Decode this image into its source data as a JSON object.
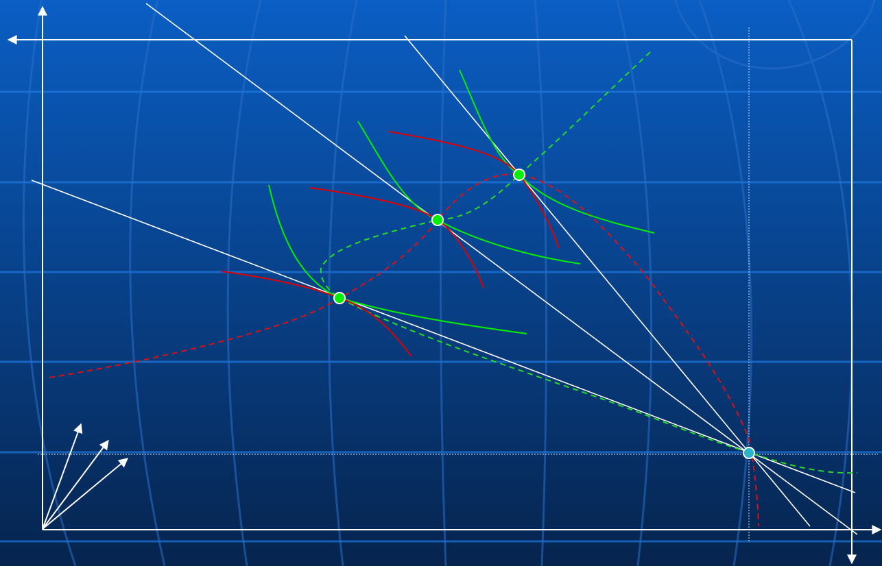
{
  "colors": {
    "background_top": "#0a5ec4",
    "background_bottom": "#06244e",
    "band_line": "#1f78e0",
    "globe_line": "#2a6fc8",
    "axis": "#ffffff",
    "ray": "#ffffff",
    "reference_line": "#cfe0ff",
    "indifference_curve": "#00ee00",
    "production_curve": "#dd0000",
    "expansion_path_green": "#22dd22",
    "expansion_path_red": "#dd1111",
    "point_fill": "#00ee00",
    "point_stroke": "#ffffff",
    "origin_point_fill": "#29b5c9"
  },
  "diagram": {
    "origin_vectors_count": 3,
    "tangency_points_count": 3,
    "second_origin_marker": "cyan-point"
  }
}
